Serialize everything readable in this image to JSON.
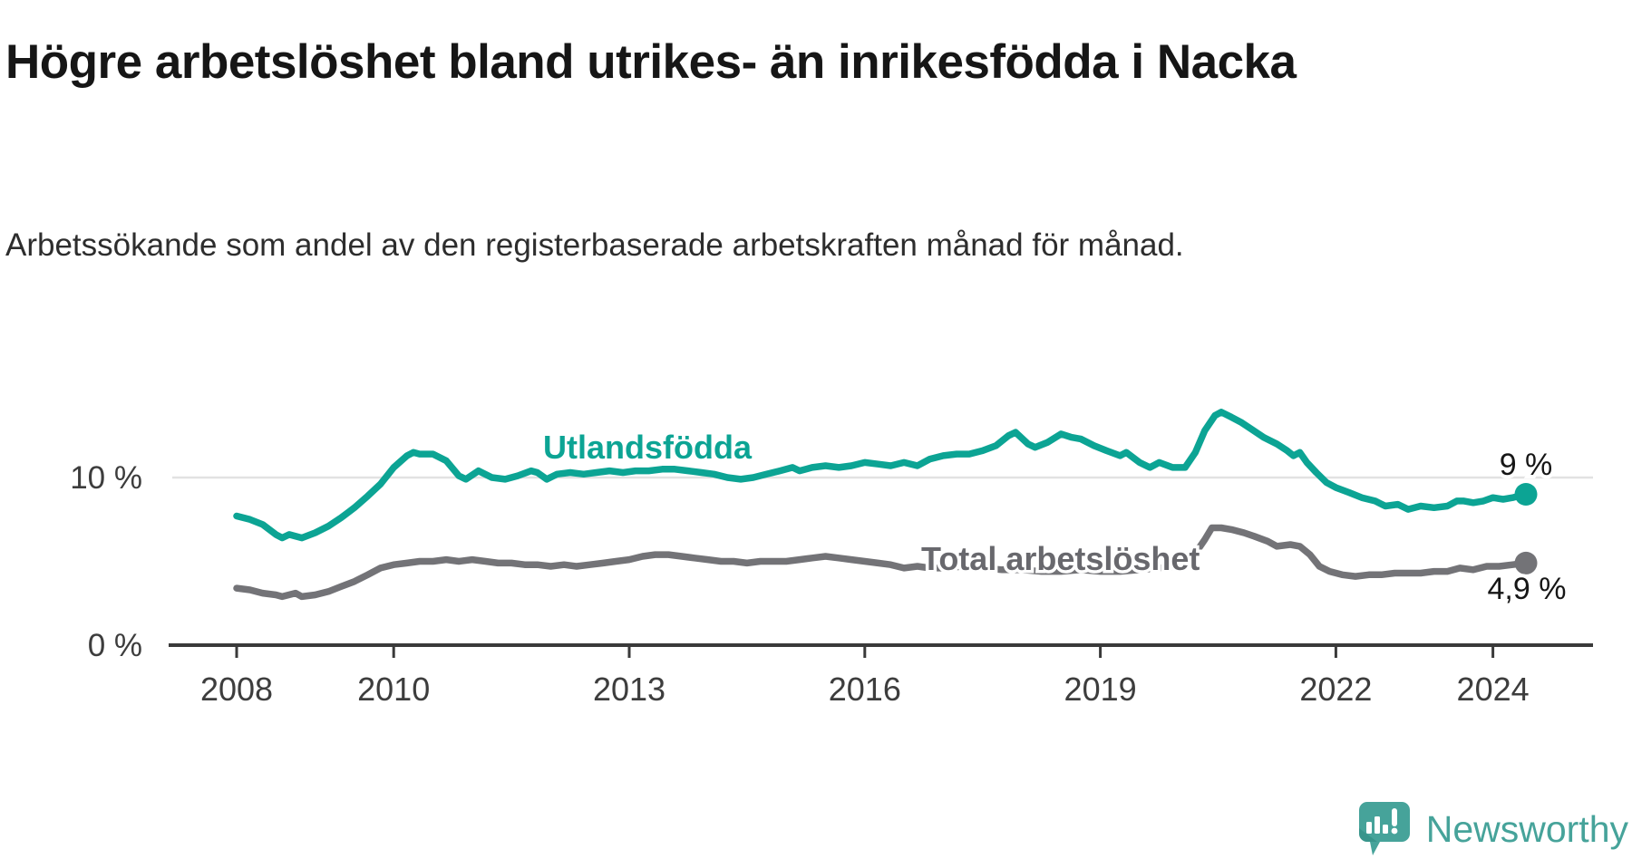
{
  "title": "Högre arbetslöshet bland utrikes- än inrikesfödda i Nacka",
  "subtitle": "Arbetssökande som andel av den registerbaserade arbetskraften månad för månad.",
  "colors": {
    "ink": "#161616",
    "sub": "#2d2d2d",
    "axis": "#3a3a3a",
    "tick": "#3d3d3d",
    "grid": "#e2e2e2",
    "teal": "#0ca494",
    "gray": "#737377",
    "logo": "#46a39a"
  },
  "logo": {
    "text": "Newsworthy",
    "icon": "newsworthy-speech-bubble-bar-chart-icon"
  },
  "chart_data": {
    "type": "line",
    "title": "Högre arbetslöshet bland utrikes- än inrikesfödda i Nacka",
    "subtitle": "Arbetssökande som andel av den registerbaserade arbetskraften månad för månad.",
    "xlabel": "",
    "ylabel": "",
    "xlim": [
      2007.9,
      2025.3
    ],
    "ylim": [
      0,
      15
    ],
    "grid": "single horizontal gridline at 10 %",
    "legend_position": "inline labels on chart",
    "x_ticks": [
      {
        "label": "2008",
        "year": 2008
      },
      {
        "label": "2010",
        "year": 2010
      },
      {
        "label": "2013",
        "year": 2013
      },
      {
        "label": "2016",
        "year": 2016
      },
      {
        "label": "2019",
        "year": 2019
      },
      {
        "label": "2022",
        "year": 2022
      },
      {
        "label": "2024",
        "year": 2024
      }
    ],
    "y_ticks": [
      {
        "label": "10 %",
        "value": 10
      },
      {
        "label": "0 %",
        "value": 0
      }
    ],
    "series": [
      {
        "name": "Utlandsfödda",
        "color": "#0ca494",
        "label_color": "#0ca494",
        "end_label": "9 %",
        "end_value": 9.0,
        "points": [
          [
            2008.0,
            7.7
          ],
          [
            2008.17,
            7.5
          ],
          [
            2008.33,
            7.2
          ],
          [
            2008.5,
            6.6
          ],
          [
            2008.58,
            6.4
          ],
          [
            2008.67,
            6.6
          ],
          [
            2008.75,
            6.5
          ],
          [
            2008.83,
            6.4
          ],
          [
            2009.0,
            6.7
          ],
          [
            2009.17,
            7.1
          ],
          [
            2009.33,
            7.6
          ],
          [
            2009.5,
            8.2
          ],
          [
            2009.67,
            8.9
          ],
          [
            2009.83,
            9.6
          ],
          [
            2010.0,
            10.6
          ],
          [
            2010.17,
            11.3
          ],
          [
            2010.25,
            11.5
          ],
          [
            2010.33,
            11.4
          ],
          [
            2010.5,
            11.4
          ],
          [
            2010.67,
            11.0
          ],
          [
            2010.83,
            10.1
          ],
          [
            2010.92,
            9.9
          ],
          [
            2011.08,
            10.4
          ],
          [
            2011.25,
            10.0
          ],
          [
            2011.42,
            9.9
          ],
          [
            2011.58,
            10.1
          ],
          [
            2011.75,
            10.4
          ],
          [
            2011.83,
            10.3
          ],
          [
            2011.95,
            9.9
          ],
          [
            2012.08,
            10.2
          ],
          [
            2012.25,
            10.3
          ],
          [
            2012.42,
            10.2
          ],
          [
            2012.58,
            10.3
          ],
          [
            2012.75,
            10.4
          ],
          [
            2012.92,
            10.3
          ],
          [
            2013.08,
            10.4
          ],
          [
            2013.25,
            10.4
          ],
          [
            2013.42,
            10.5
          ],
          [
            2013.58,
            10.5
          ],
          [
            2013.75,
            10.4
          ],
          [
            2013.92,
            10.3
          ],
          [
            2014.08,
            10.2
          ],
          [
            2014.25,
            10.0
          ],
          [
            2014.42,
            9.9
          ],
          [
            2014.58,
            10.0
          ],
          [
            2014.75,
            10.2
          ],
          [
            2014.92,
            10.4
          ],
          [
            2015.08,
            10.6
          ],
          [
            2015.17,
            10.4
          ],
          [
            2015.33,
            10.6
          ],
          [
            2015.5,
            10.7
          ],
          [
            2015.67,
            10.6
          ],
          [
            2015.83,
            10.7
          ],
          [
            2016.0,
            10.9
          ],
          [
            2016.17,
            10.8
          ],
          [
            2016.33,
            10.7
          ],
          [
            2016.5,
            10.9
          ],
          [
            2016.67,
            10.7
          ],
          [
            2016.83,
            11.1
          ],
          [
            2017.0,
            11.3
          ],
          [
            2017.17,
            11.4
          ],
          [
            2017.33,
            11.4
          ],
          [
            2017.5,
            11.6
          ],
          [
            2017.67,
            11.9
          ],
          [
            2017.83,
            12.5
          ],
          [
            2017.92,
            12.7
          ],
          [
            2018.08,
            12.0
          ],
          [
            2018.17,
            11.8
          ],
          [
            2018.33,
            12.1
          ],
          [
            2018.5,
            12.6
          ],
          [
            2018.63,
            12.4
          ],
          [
            2018.75,
            12.3
          ],
          [
            2018.92,
            11.9
          ],
          [
            2019.08,
            11.6
          ],
          [
            2019.25,
            11.3
          ],
          [
            2019.33,
            11.5
          ],
          [
            2019.5,
            10.9
          ],
          [
            2019.63,
            10.6
          ],
          [
            2019.75,
            10.9
          ],
          [
            2019.92,
            10.6
          ],
          [
            2020.08,
            10.6
          ],
          [
            2020.21,
            11.5
          ],
          [
            2020.33,
            12.8
          ],
          [
            2020.46,
            13.7
          ],
          [
            2020.54,
            13.9
          ],
          [
            2020.67,
            13.6
          ],
          [
            2020.79,
            13.3
          ],
          [
            2020.92,
            12.9
          ],
          [
            2021.08,
            12.4
          ],
          [
            2021.25,
            12.0
          ],
          [
            2021.38,
            11.6
          ],
          [
            2021.46,
            11.3
          ],
          [
            2021.54,
            11.5
          ],
          [
            2021.63,
            10.9
          ],
          [
            2021.75,
            10.3
          ],
          [
            2021.88,
            9.7
          ],
          [
            2022.0,
            9.4
          ],
          [
            2022.17,
            9.1
          ],
          [
            2022.33,
            8.8
          ],
          [
            2022.5,
            8.6
          ],
          [
            2022.63,
            8.3
          ],
          [
            2022.79,
            8.4
          ],
          [
            2022.92,
            8.1
          ],
          [
            2023.08,
            8.3
          ],
          [
            2023.25,
            8.2
          ],
          [
            2023.42,
            8.3
          ],
          [
            2023.54,
            8.6
          ],
          [
            2023.63,
            8.6
          ],
          [
            2023.75,
            8.5
          ],
          [
            2023.88,
            8.6
          ],
          [
            2024.0,
            8.8
          ],
          [
            2024.13,
            8.7
          ],
          [
            2024.25,
            8.8
          ],
          [
            2024.33,
            8.9
          ],
          [
            2024.42,
            9.0
          ]
        ]
      },
      {
        "name": "Total arbetslöshet",
        "color": "#737377",
        "label_color": "#68686d",
        "end_label": "4,9 %",
        "end_value": 4.9,
        "points": [
          [
            2008.0,
            3.4
          ],
          [
            2008.17,
            3.3
          ],
          [
            2008.33,
            3.1
          ],
          [
            2008.5,
            3.0
          ],
          [
            2008.58,
            2.9
          ],
          [
            2008.75,
            3.1
          ],
          [
            2008.83,
            2.9
          ],
          [
            2009.0,
            3.0
          ],
          [
            2009.17,
            3.2
          ],
          [
            2009.33,
            3.5
          ],
          [
            2009.5,
            3.8
          ],
          [
            2009.67,
            4.2
          ],
          [
            2009.83,
            4.6
          ],
          [
            2010.0,
            4.8
          ],
          [
            2010.17,
            4.9
          ],
          [
            2010.33,
            5.0
          ],
          [
            2010.5,
            5.0
          ],
          [
            2010.67,
            5.1
          ],
          [
            2010.83,
            5.0
          ],
          [
            2011.0,
            5.1
          ],
          [
            2011.17,
            5.0
          ],
          [
            2011.33,
            4.9
          ],
          [
            2011.5,
            4.9
          ],
          [
            2011.67,
            4.8
          ],
          [
            2011.83,
            4.8
          ],
          [
            2012.0,
            4.7
          ],
          [
            2012.17,
            4.8
          ],
          [
            2012.33,
            4.7
          ],
          [
            2012.5,
            4.8
          ],
          [
            2012.67,
            4.9
          ],
          [
            2012.83,
            5.0
          ],
          [
            2013.0,
            5.1
          ],
          [
            2013.17,
            5.3
          ],
          [
            2013.33,
            5.4
          ],
          [
            2013.5,
            5.4
          ],
          [
            2013.67,
            5.3
          ],
          [
            2013.83,
            5.2
          ],
          [
            2014.0,
            5.1
          ],
          [
            2014.17,
            5.0
          ],
          [
            2014.33,
            5.0
          ],
          [
            2014.5,
            4.9
          ],
          [
            2014.67,
            5.0
          ],
          [
            2014.83,
            5.0
          ],
          [
            2015.0,
            5.0
          ],
          [
            2015.17,
            5.1
          ],
          [
            2015.33,
            5.2
          ],
          [
            2015.5,
            5.3
          ],
          [
            2015.67,
            5.2
          ],
          [
            2015.83,
            5.1
          ],
          [
            2016.0,
            5.0
          ],
          [
            2016.17,
            4.9
          ],
          [
            2016.33,
            4.8
          ],
          [
            2016.5,
            4.6
          ],
          [
            2016.67,
            4.7
          ],
          [
            2016.83,
            4.6
          ],
          [
            2017.0,
            4.6
          ],
          [
            2017.25,
            4.7
          ],
          [
            2017.5,
            4.6
          ],
          [
            2017.75,
            4.5
          ],
          [
            2018.0,
            4.5
          ],
          [
            2018.25,
            4.4
          ],
          [
            2018.5,
            4.4
          ],
          [
            2018.75,
            4.5
          ],
          [
            2019.0,
            4.4
          ],
          [
            2019.25,
            4.4
          ],
          [
            2019.5,
            4.5
          ],
          [
            2019.75,
            4.6
          ],
          [
            2020.0,
            4.7
          ],
          [
            2020.17,
            5.2
          ],
          [
            2020.33,
            6.3
          ],
          [
            2020.42,
            7.0
          ],
          [
            2020.54,
            7.0
          ],
          [
            2020.67,
            6.9
          ],
          [
            2020.83,
            6.7
          ],
          [
            2020.96,
            6.5
          ],
          [
            2021.13,
            6.2
          ],
          [
            2021.25,
            5.9
          ],
          [
            2021.42,
            6.0
          ],
          [
            2021.54,
            5.9
          ],
          [
            2021.67,
            5.4
          ],
          [
            2021.79,
            4.7
          ],
          [
            2021.92,
            4.4
          ],
          [
            2022.08,
            4.2
          ],
          [
            2022.25,
            4.1
          ],
          [
            2022.42,
            4.2
          ],
          [
            2022.58,
            4.2
          ],
          [
            2022.75,
            4.3
          ],
          [
            2022.92,
            4.3
          ],
          [
            2023.08,
            4.3
          ],
          [
            2023.25,
            4.4
          ],
          [
            2023.42,
            4.4
          ],
          [
            2023.58,
            4.6
          ],
          [
            2023.75,
            4.5
          ],
          [
            2023.92,
            4.7
          ],
          [
            2024.08,
            4.7
          ],
          [
            2024.25,
            4.8
          ],
          [
            2024.42,
            4.9
          ]
        ]
      }
    ]
  }
}
